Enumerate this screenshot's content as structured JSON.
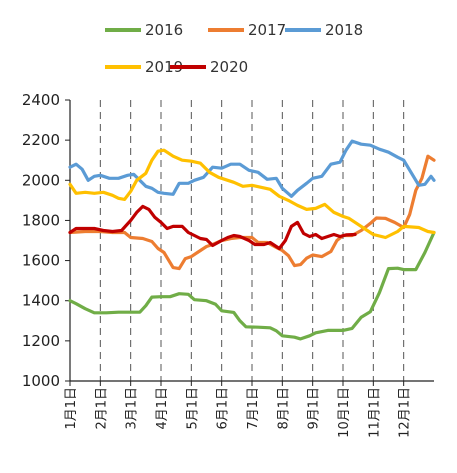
{
  "chart_data": {
    "type": "line",
    "title": "",
    "xlabel": "",
    "ylabel": "",
    "ylim": [
      1000,
      2400
    ],
    "yticks": [
      1000,
      1200,
      1400,
      1600,
      1800,
      2000,
      2200,
      2400
    ],
    "xlim": [
      1,
      13
    ],
    "x_tick_labels": [
      {
        "x": 1,
        "label": "1月1日"
      },
      {
        "x": 2,
        "label": "2月1日"
      },
      {
        "x": 3,
        "label": "3月1日"
      },
      {
        "x": 4,
        "label": "4月1日"
      },
      {
        "x": 5,
        "label": "5月1日"
      },
      {
        "x": 6,
        "label": "6月1日"
      },
      {
        "x": 7,
        "label": "7月1日"
      },
      {
        "x": 8,
        "label": "8月1日"
      },
      {
        "x": 9,
        "label": "9月1日"
      },
      {
        "x": 10,
        "label": "10月1日"
      },
      {
        "x": 11,
        "label": "11月1日"
      },
      {
        "x": 12,
        "label": "12月1日"
      }
    ],
    "vertical_gridlines": "dashed at each month start",
    "legend_position": "top",
    "series": [
      {
        "name": "2016",
        "color": "#70ad47",
        "points": [
          [
            1.0,
            1400
          ],
          [
            1.2,
            1385
          ],
          [
            1.5,
            1360
          ],
          [
            1.8,
            1340
          ],
          [
            2.2,
            1340
          ],
          [
            2.6,
            1343
          ],
          [
            3.0,
            1343
          ],
          [
            3.3,
            1343
          ],
          [
            3.5,
            1375
          ],
          [
            3.7,
            1418
          ],
          [
            4.0,
            1420
          ],
          [
            4.3,
            1420
          ],
          [
            4.6,
            1435
          ],
          [
            4.9,
            1432
          ],
          [
            5.1,
            1405
          ],
          [
            5.5,
            1400
          ],
          [
            5.8,
            1382
          ],
          [
            6.0,
            1350
          ],
          [
            6.4,
            1342
          ],
          [
            6.6,
            1300
          ],
          [
            6.8,
            1270
          ],
          [
            7.2,
            1268
          ],
          [
            7.6,
            1265
          ],
          [
            7.8,
            1250
          ],
          [
            8.0,
            1225
          ],
          [
            8.4,
            1218
          ],
          [
            8.6,
            1210
          ],
          [
            8.9,
            1225
          ],
          [
            9.1,
            1240
          ],
          [
            9.5,
            1252
          ],
          [
            10.0,
            1252
          ],
          [
            10.3,
            1262
          ],
          [
            10.6,
            1318
          ],
          [
            10.9,
            1345
          ],
          [
            11.2,
            1440
          ],
          [
            11.5,
            1560
          ],
          [
            11.8,
            1562
          ],
          [
            12.0,
            1555
          ],
          [
            12.4,
            1555
          ],
          [
            12.7,
            1640
          ],
          [
            13.0,
            1740
          ]
        ]
      },
      {
        "name": "2017",
        "color": "#ed7d31",
        "points": [
          [
            1.0,
            1740
          ],
          [
            1.5,
            1745
          ],
          [
            2.0,
            1745
          ],
          [
            2.4,
            1740
          ],
          [
            2.8,
            1740
          ],
          [
            3.0,
            1715
          ],
          [
            3.4,
            1710
          ],
          [
            3.7,
            1695
          ],
          [
            3.9,
            1660
          ],
          [
            4.1,
            1640
          ],
          [
            4.4,
            1565
          ],
          [
            4.6,
            1560
          ],
          [
            4.8,
            1610
          ],
          [
            5.0,
            1620
          ],
          [
            5.2,
            1640
          ],
          [
            5.5,
            1670
          ],
          [
            5.7,
            1680
          ],
          [
            6.0,
            1700
          ],
          [
            6.3,
            1710
          ],
          [
            6.6,
            1715
          ],
          [
            7.0,
            1715
          ],
          [
            7.2,
            1690
          ],
          [
            7.5,
            1690
          ],
          [
            7.8,
            1665
          ],
          [
            8.0,
            1650
          ],
          [
            8.2,
            1625
          ],
          [
            8.4,
            1575
          ],
          [
            8.6,
            1580
          ],
          [
            8.8,
            1612
          ],
          [
            9.0,
            1628
          ],
          [
            9.3,
            1620
          ],
          [
            9.6,
            1645
          ],
          [
            9.8,
            1700
          ],
          [
            10.0,
            1725
          ],
          [
            10.3,
            1725
          ],
          [
            10.6,
            1750
          ],
          [
            10.9,
            1785
          ],
          [
            11.1,
            1812
          ],
          [
            11.4,
            1810
          ],
          [
            11.7,
            1790
          ],
          [
            12.0,
            1765
          ],
          [
            12.2,
            1830
          ],
          [
            12.4,
            1950
          ],
          [
            12.6,
            2010
          ],
          [
            12.8,
            2120
          ],
          [
            13.0,
            2100
          ]
        ]
      },
      {
        "name": "2018",
        "color": "#5b9bd5",
        "points": [
          [
            1.0,
            2065
          ],
          [
            1.2,
            2080
          ],
          [
            1.4,
            2055
          ],
          [
            1.6,
            2000
          ],
          [
            1.8,
            2020
          ],
          [
            2.0,
            2025
          ],
          [
            2.3,
            2010
          ],
          [
            2.6,
            2010
          ],
          [
            2.9,
            2025
          ],
          [
            3.1,
            2030
          ],
          [
            3.3,
            2000
          ],
          [
            3.5,
            1970
          ],
          [
            3.7,
            1960
          ],
          [
            3.9,
            1940
          ],
          [
            4.1,
            1935
          ],
          [
            4.4,
            1930
          ],
          [
            4.6,
            1985
          ],
          [
            4.9,
            1985
          ],
          [
            5.1,
            2000
          ],
          [
            5.4,
            2015
          ],
          [
            5.7,
            2065
          ],
          [
            6.0,
            2060
          ],
          [
            6.3,
            2080
          ],
          [
            6.6,
            2080
          ],
          [
            6.9,
            2050
          ],
          [
            7.2,
            2040
          ],
          [
            7.5,
            2005
          ],
          [
            7.8,
            2010
          ],
          [
            8.0,
            1960
          ],
          [
            8.3,
            1920
          ],
          [
            8.5,
            1950
          ],
          [
            8.8,
            1985
          ],
          [
            9.0,
            2010
          ],
          [
            9.3,
            2020
          ],
          [
            9.6,
            2080
          ],
          [
            9.9,
            2090
          ],
          [
            10.1,
            2150
          ],
          [
            10.3,
            2195
          ],
          [
            10.6,
            2180
          ],
          [
            10.9,
            2175
          ],
          [
            11.2,
            2155
          ],
          [
            11.5,
            2140
          ],
          [
            11.8,
            2115
          ],
          [
            12.0,
            2100
          ],
          [
            12.3,
            2025
          ],
          [
            12.5,
            1975
          ],
          [
            12.7,
            1980
          ],
          [
            12.9,
            2020
          ],
          [
            13.0,
            2000
          ]
        ]
      },
      {
        "name": "2019",
        "color": "#ffc000",
        "points": [
          [
            1.0,
            1980
          ],
          [
            1.2,
            1935
          ],
          [
            1.5,
            1940
          ],
          [
            1.8,
            1935
          ],
          [
            2.1,
            1940
          ],
          [
            2.4,
            1925
          ],
          [
            2.6,
            1910
          ],
          [
            2.8,
            1905
          ],
          [
            3.0,
            1945
          ],
          [
            3.2,
            2000
          ],
          [
            3.5,
            2035
          ],
          [
            3.7,
            2100
          ],
          [
            3.9,
            2145
          ],
          [
            4.1,
            2150
          ],
          [
            4.4,
            2120
          ],
          [
            4.7,
            2100
          ],
          [
            5.0,
            2095
          ],
          [
            5.3,
            2085
          ],
          [
            5.6,
            2040
          ],
          [
            5.9,
            2015
          ],
          [
            6.2,
            2000
          ],
          [
            6.4,
            1990
          ],
          [
            6.7,
            1970
          ],
          [
            7.0,
            1975
          ],
          [
            7.3,
            1965
          ],
          [
            7.6,
            1955
          ],
          [
            7.9,
            1920
          ],
          [
            8.2,
            1900
          ],
          [
            8.5,
            1875
          ],
          [
            8.8,
            1855
          ],
          [
            9.1,
            1860
          ],
          [
            9.4,
            1880
          ],
          [
            9.7,
            1840
          ],
          [
            10.0,
            1820
          ],
          [
            10.2,
            1810
          ],
          [
            10.5,
            1780
          ],
          [
            10.8,
            1750
          ],
          [
            11.0,
            1730
          ],
          [
            11.4,
            1715
          ],
          [
            11.8,
            1745
          ],
          [
            12.0,
            1770
          ],
          [
            12.5,
            1765
          ],
          [
            12.8,
            1745
          ],
          [
            13.0,
            1740
          ]
        ]
      },
      {
        "name": "2020",
        "color": "#c00000",
        "points": [
          [
            1.0,
            1740
          ],
          [
            1.2,
            1760
          ],
          [
            1.5,
            1760
          ],
          [
            1.8,
            1760
          ],
          [
            2.1,
            1750
          ],
          [
            2.4,
            1745
          ],
          [
            2.7,
            1750
          ],
          [
            3.0,
            1800
          ],
          [
            3.2,
            1840
          ],
          [
            3.4,
            1870
          ],
          [
            3.6,
            1855
          ],
          [
            3.8,
            1815
          ],
          [
            4.0,
            1790
          ],
          [
            4.2,
            1760
          ],
          [
            4.4,
            1770
          ],
          [
            4.7,
            1770
          ],
          [
            4.9,
            1740
          ],
          [
            5.1,
            1725
          ],
          [
            5.3,
            1710
          ],
          [
            5.5,
            1705
          ],
          [
            5.7,
            1675
          ],
          [
            6.0,
            1700
          ],
          [
            6.2,
            1715
          ],
          [
            6.4,
            1725
          ],
          [
            6.6,
            1720
          ],
          [
            6.9,
            1700
          ],
          [
            7.1,
            1680
          ],
          [
            7.4,
            1680
          ],
          [
            7.6,
            1690
          ],
          [
            7.9,
            1660
          ],
          [
            8.1,
            1700
          ],
          [
            8.3,
            1770
          ],
          [
            8.5,
            1790
          ],
          [
            8.7,
            1735
          ],
          [
            8.9,
            1720
          ],
          [
            9.1,
            1730
          ],
          [
            9.3,
            1710
          ],
          [
            9.5,
            1720
          ],
          [
            9.7,
            1730
          ],
          [
            9.9,
            1720
          ],
          [
            10.1,
            1728
          ],
          [
            10.4,
            1730
          ]
        ]
      }
    ]
  }
}
